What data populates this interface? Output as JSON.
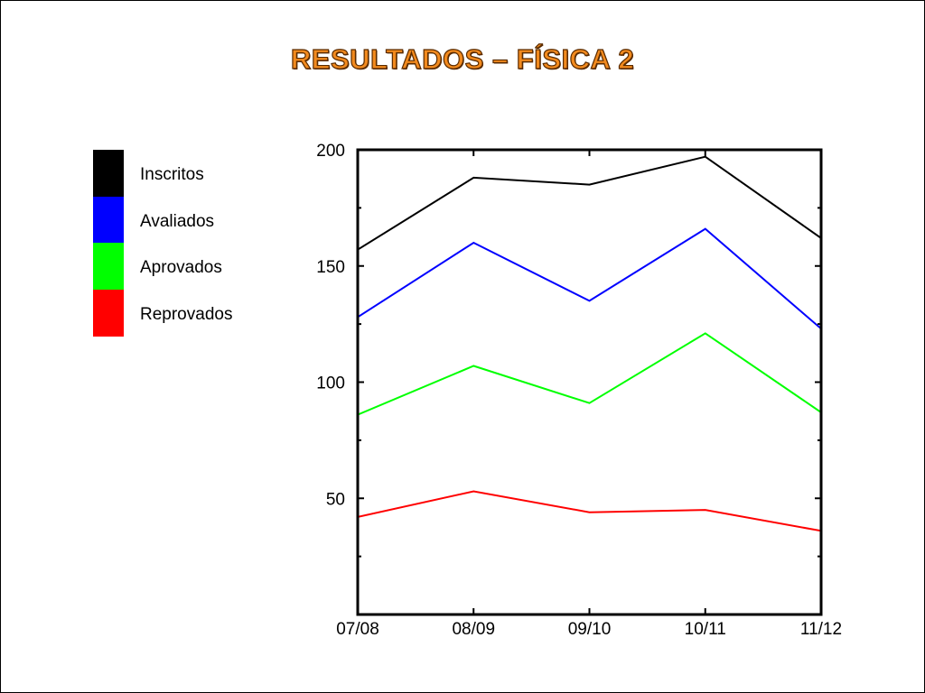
{
  "title": "RESULTADOS – FÍSICA 2",
  "colors": {
    "title_fill": "#f28a1e",
    "title_outline": "#5a2b00"
  },
  "legend": {
    "items": [
      {
        "label": "Inscritos",
        "color": "#000000"
      },
      {
        "label": "Avaliados",
        "color": "#0000ff"
      },
      {
        "label": "Aprovados",
        "color": "#00ff00"
      },
      {
        "label": "Reprovados",
        "color": "#ff0000"
      }
    ]
  },
  "chart_data": {
    "type": "line",
    "title": "RESULTADOS – FÍSICA 2",
    "xlabel": "",
    "ylabel": "",
    "categories": [
      "07/08",
      "08/09",
      "09/10",
      "10/11",
      "11/12"
    ],
    "ylim": [
      0,
      200
    ],
    "yticks": [
      50,
      100,
      150,
      200
    ],
    "grid": false,
    "legend_position": "left",
    "series": [
      {
        "name": "Inscritos",
        "color": "#000000",
        "values": [
          157,
          188,
          185,
          197,
          162
        ]
      },
      {
        "name": "Avaliados",
        "color": "#0000ff",
        "values": [
          128,
          160,
          135,
          166,
          123
        ]
      },
      {
        "name": "Aprovados",
        "color": "#00ff00",
        "values": [
          86,
          107,
          91,
          121,
          87
        ]
      },
      {
        "name": "Reprovados",
        "color": "#ff0000",
        "values": [
          42,
          53,
          44,
          45,
          36
        ]
      }
    ]
  }
}
